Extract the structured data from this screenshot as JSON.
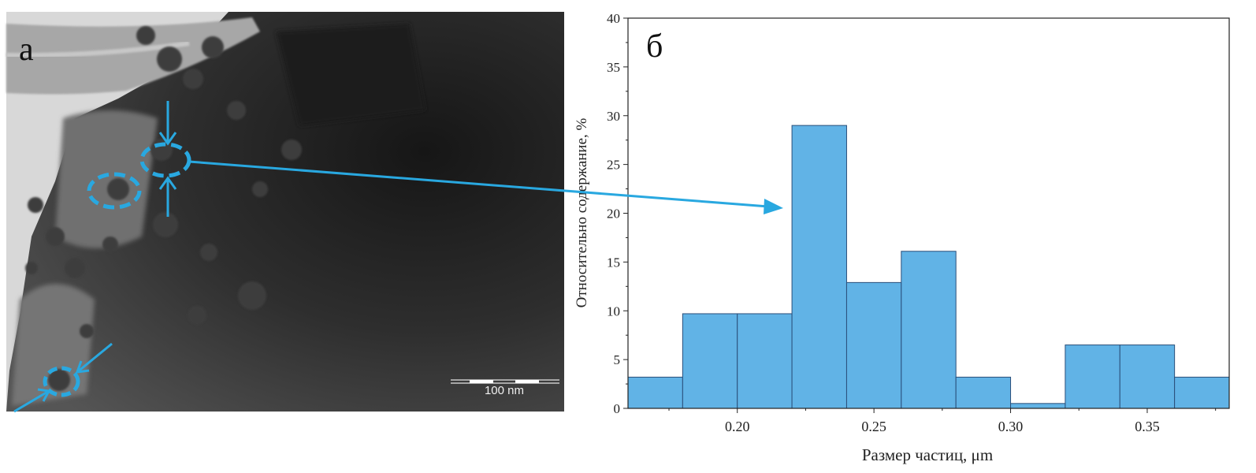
{
  "panel_a": {
    "label": "а",
    "scale_bar_text": "100 nm"
  },
  "chart_data": {
    "type": "bar",
    "panel_label": "б",
    "title": "",
    "xlabel": "Размер частиц, μm",
    "ylabel": "Относительно содержание, %",
    "xlim": [
      0.16,
      0.38
    ],
    "ylim": [
      0,
      40
    ],
    "xticks": [
      "0.20",
      "0.25",
      "0.30",
      "0.35"
    ],
    "yticks": [
      "0",
      "5",
      "10",
      "15",
      "20",
      "25",
      "30",
      "35",
      "40"
    ],
    "bin_width": 0.02,
    "bins": [
      {
        "x0": 0.16,
        "x1": 0.18,
        "value": 3.2
      },
      {
        "x0": 0.18,
        "x1": 0.2,
        "value": 9.7
      },
      {
        "x0": 0.2,
        "x1": 0.22,
        "value": 9.7
      },
      {
        "x0": 0.22,
        "x1": 0.24,
        "value": 29.0
      },
      {
        "x0": 0.24,
        "x1": 0.26,
        "value": 12.9
      },
      {
        "x0": 0.26,
        "x1": 0.28,
        "value": 16.1
      },
      {
        "x0": 0.28,
        "x1": 0.3,
        "value": 3.2
      },
      {
        "x0": 0.3,
        "x1": 0.32,
        "value": 0.5
      },
      {
        "x0": 0.32,
        "x1": 0.34,
        "value": 6.5
      },
      {
        "x0": 0.34,
        "x1": 0.36,
        "value": 6.5
      },
      {
        "x0": 0.36,
        "x1": 0.38,
        "value": 3.2
      }
    ],
    "bar_color": "#61b3e6",
    "bar_edge_color": "#2a4f7a",
    "grid": false
  },
  "annotation_color": "#29a8e0"
}
